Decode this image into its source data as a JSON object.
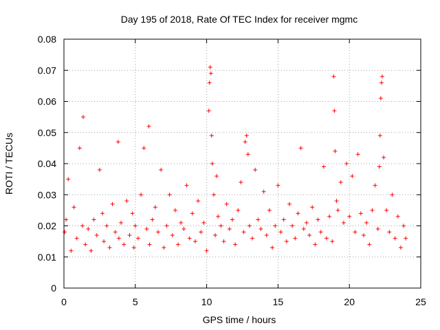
{
  "chart_data": {
    "type": "scatter",
    "title": "Day 195 of 2018, Rate Of TEC Index for receiver mgmc",
    "xlabel": "GPS time / hours",
    "ylabel": "ROTI / TECUs",
    "xlim": [
      0,
      25
    ],
    "ylim": [
      0,
      0.08
    ],
    "x_ticks": [
      "0",
      "5",
      "10",
      "15",
      "20",
      "25"
    ],
    "y_ticks": [
      "0",
      "0.01",
      "0.02",
      "0.03",
      "0.04",
      "0.05",
      "0.06",
      "0.07",
      "0.08"
    ],
    "grid": true,
    "marker": "+",
    "colors": {
      "series": "#ff0000",
      "axes": "#000000",
      "grid": "#a0a0a0"
    },
    "series": [
      {
        "x": [
          0.05,
          0.15,
          0.3,
          0.5,
          0.7,
          0.9,
          1.1,
          1.3,
          1.35,
          1.5,
          1.7,
          1.9,
          2.1,
          2.3,
          2.5,
          2.7,
          2.8,
          3.0,
          3.2,
          3.4,
          3.6,
          3.8,
          3.85,
          4.0,
          4.2,
          4.4,
          4.6,
          4.8,
          4.9,
          5.0,
          5.2,
          5.4,
          5.6,
          5.8,
          5.95,
          6.0,
          6.2,
          6.4,
          6.6,
          6.8,
          7.0,
          7.2,
          7.4,
          7.6,
          7.8,
          8.0,
          8.2,
          8.4,
          8.6,
          8.8,
          9.0,
          9.2,
          9.4,
          9.6,
          9.8,
          10.0,
          10.15,
          10.2,
          10.25,
          10.3,
          10.35,
          10.4,
          10.5,
          10.6,
          10.7,
          10.8,
          11.0,
          11.2,
          11.4,
          11.6,
          11.8,
          12.0,
          12.2,
          12.4,
          12.6,
          12.7,
          12.8,
          12.9,
          13.0,
          13.2,
          13.4,
          13.6,
          13.8,
          14.0,
          14.2,
          14.4,
          14.6,
          14.8,
          15.0,
          15.2,
          15.4,
          15.6,
          15.8,
          16.0,
          16.2,
          16.4,
          16.6,
          16.8,
          17.0,
          17.2,
          17.4,
          17.6,
          17.8,
          18.0,
          18.2,
          18.4,
          18.6,
          18.8,
          18.9,
          18.95,
          19.0,
          19.1,
          19.2,
          19.4,
          19.6,
          19.8,
          20.0,
          20.2,
          20.4,
          20.6,
          20.8,
          21.0,
          21.2,
          21.4,
          21.6,
          21.8,
          22.0,
          22.1,
          22.15,
          22.2,
          22.25,
          22.3,
          22.4,
          22.6,
          22.8,
          23.0,
          23.2,
          23.4,
          23.6,
          23.8,
          23.95
        ],
        "y": [
          0.018,
          0.022,
          0.035,
          0.012,
          0.026,
          0.016,
          0.045,
          0.02,
          0.055,
          0.014,
          0.019,
          0.012,
          0.022,
          0.017,
          0.038,
          0.024,
          0.015,
          0.02,
          0.013,
          0.027,
          0.018,
          0.047,
          0.016,
          0.021,
          0.014,
          0.028,
          0.017,
          0.024,
          0.013,
          0.02,
          0.016,
          0.03,
          0.045,
          0.019,
          0.052,
          0.014,
          0.022,
          0.026,
          0.018,
          0.038,
          0.013,
          0.02,
          0.03,
          0.017,
          0.025,
          0.014,
          0.021,
          0.019,
          0.033,
          0.016,
          0.024,
          0.015,
          0.028,
          0.018,
          0.021,
          0.012,
          0.057,
          0.066,
          0.071,
          0.069,
          0.049,
          0.04,
          0.03,
          0.017,
          0.036,
          0.023,
          0.02,
          0.015,
          0.027,
          0.019,
          0.022,
          0.014,
          0.025,
          0.034,
          0.018,
          0.047,
          0.049,
          0.043,
          0.02,
          0.016,
          0.038,
          0.022,
          0.019,
          0.031,
          0.017,
          0.025,
          0.013,
          0.02,
          0.033,
          0.018,
          0.022,
          0.015,
          0.027,
          0.02,
          0.016,
          0.024,
          0.045,
          0.019,
          0.021,
          0.017,
          0.026,
          0.014,
          0.022,
          0.018,
          0.039,
          0.016,
          0.023,
          0.015,
          0.068,
          0.057,
          0.044,
          0.028,
          0.025,
          0.034,
          0.021,
          0.04,
          0.023,
          0.036,
          0.018,
          0.043,
          0.024,
          0.017,
          0.021,
          0.014,
          0.025,
          0.033,
          0.019,
          0.039,
          0.049,
          0.061,
          0.066,
          0.068,
          0.042,
          0.025,
          0.018,
          0.03,
          0.016,
          0.023,
          0.013,
          0.02,
          0.016
        ]
      }
    ]
  }
}
